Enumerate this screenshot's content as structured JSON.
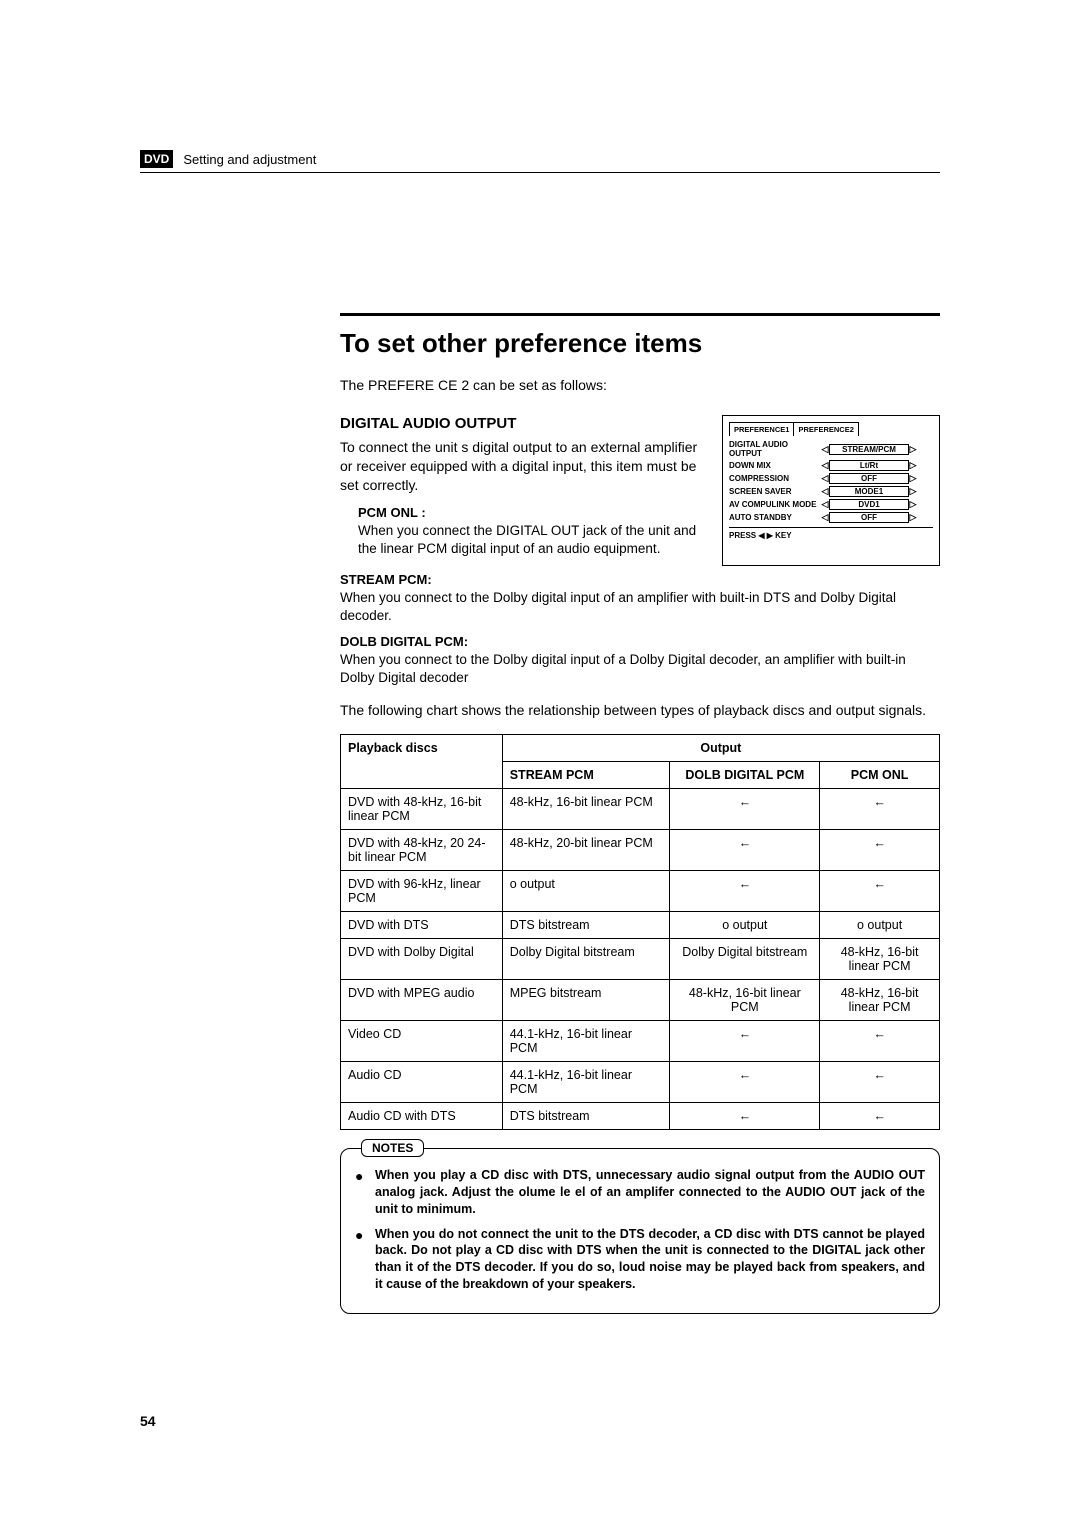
{
  "header": {
    "chip": "DVD",
    "breadcrumb": "Setting and adjustment"
  },
  "title": "To set other preference items",
  "intro": "The PREFERE CE 2 can be set as follows:",
  "dao": {
    "heading": "DIGITAL AUDIO OUTPUT",
    "body": "To connect the unit s digital output to an external amplifier or receiver equipped with a digital input, this item must be set correctly.",
    "opts": [
      {
        "h": "PCM ONL :",
        "p": "When you connect the DIGITAL OUT jack of the unit and the linear PCM digital input of an audio equipment."
      },
      {
        "h": "STREAM PCM:",
        "p": "When you connect to the Dolby digital input of an amplifier with built-in DTS and Dolby Digital decoder."
      },
      {
        "h": "DOLB DIGITAL PCM:",
        "p": "When you connect to the Dolby digital input of a Dolby Digital decoder, an amplifier with built-in Dolby Digital decoder"
      }
    ]
  },
  "osd": {
    "tab1": "PREFERENCE1",
    "tab2": "PREFERENCE2",
    "rows": [
      {
        "label": "DIGITAL AUDIO OUTPUT",
        "value": "STREAM/PCM"
      },
      {
        "label": "DOWN MIX",
        "value": "Lt/Rt"
      },
      {
        "label": "COMPRESSION",
        "value": "OFF"
      },
      {
        "label": "SCREEN SAVER",
        "value": "MODE1"
      },
      {
        "label": "AV COMPULINK MODE",
        "value": "DVD1"
      },
      {
        "label": "AUTO STANDBY",
        "value": "OFF"
      }
    ],
    "footer": "PRESS ◀ ▶ KEY"
  },
  "chart_intro": "The following chart shows the relationship between types of playback discs and output signals.",
  "table": {
    "head_disc": "Playback discs",
    "head_output": "Output",
    "head_stream": "STREAM PCM",
    "head_dd": "DOLB DIGITAL PCM",
    "head_pcm": "PCM ONL",
    "rows": [
      {
        "disc": "DVD with 48-kHz, 16-bit linear PCM",
        "stream": "48-kHz, 16-bit linear PCM",
        "dd": "←",
        "pcm": "←"
      },
      {
        "disc": "DVD with 48-kHz, 20 24-bit linear PCM",
        "stream": "48-kHz, 20-bit linear PCM",
        "dd": "←",
        "pcm": "←"
      },
      {
        "disc": "DVD with 96-kHz, linear PCM",
        "stream": "o output",
        "dd": "←",
        "pcm": "←"
      },
      {
        "disc": "DVD with DTS",
        "stream": "DTS bitstream",
        "dd": "o output",
        "pcm": "o output"
      },
      {
        "disc": "DVD with Dolby Digital",
        "stream": "Dolby Digital bitstream",
        "dd": "Dolby Digital bitstream",
        "pcm": "48-kHz, 16-bit linear PCM"
      },
      {
        "disc": "DVD with MPEG audio",
        "stream": "MPEG bitstream",
        "dd": "48-kHz, 16-bit linear PCM",
        "pcm": "48-kHz, 16-bit linear PCM"
      },
      {
        "disc": "Video CD",
        "stream": "44.1-kHz, 16-bit linear PCM",
        "dd": "←",
        "pcm": "←"
      },
      {
        "disc": "Audio CD",
        "stream": "44.1-kHz, 16-bit linear PCM",
        "dd": "←",
        "pcm": "←"
      },
      {
        "disc": "Audio CD with DTS",
        "stream": "DTS bitstream",
        "dd": "←",
        "pcm": "←"
      }
    ]
  },
  "notes": {
    "badge": "NOTES",
    "items": [
      "When you play a CD disc with DTS, unnecessary audio signal output from the AUDIO OUT analog jack. Adjust the olume le el of an amplifer connected to the AUDIO OUT jack of the unit to minimum.",
      "When you do not connect the unit to the DTS decoder, a CD disc with DTS cannot be played back. Do not play a CD disc with DTS when the unit is connected to the DIGITAL jack other than it of the DTS decoder. If you do so, loud noise may be played back from speakers, and it cause of the breakdown of your speakers."
    ]
  },
  "page_number": "54"
}
